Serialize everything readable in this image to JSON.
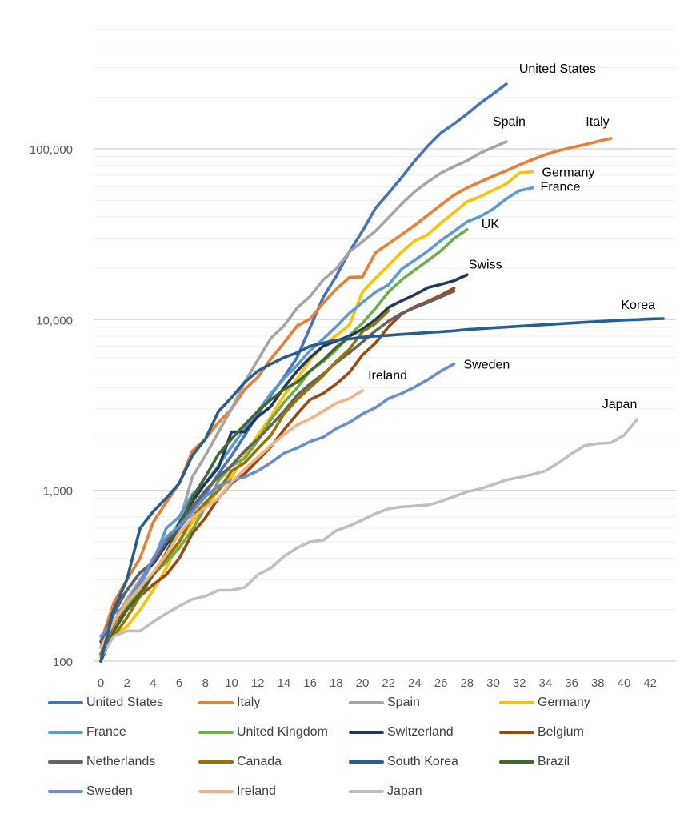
{
  "chart_data": {
    "type": "line",
    "xlabel": "",
    "ylabel": "",
    "title": "",
    "y_scale": "log",
    "ylim": [
      100,
      500000
    ],
    "xlim": [
      0,
      43
    ],
    "x_ticks": [
      0,
      2,
      4,
      6,
      8,
      10,
      12,
      14,
      16,
      18,
      20,
      22,
      24,
      26,
      28,
      30,
      32,
      34,
      36,
      38,
      40,
      42
    ],
    "y_ticks": [
      {
        "value": 100,
        "label": "100"
      },
      {
        "value": 1000,
        "label": "1,000"
      },
      {
        "value": 10000,
        "label": "10,000"
      },
      {
        "value": 100000,
        "label": "100,000"
      }
    ],
    "grid": "horizontal",
    "legend_position": "bottom",
    "series": [
      {
        "name": "United States",
        "label": "United States",
        "color": "#4472C4",
        "x": [
          0,
          1,
          2,
          3,
          4,
          5,
          6,
          7,
          8,
          9,
          10,
          11,
          12,
          13,
          14,
          15,
          16,
          17,
          18,
          19,
          20,
          21,
          22,
          23,
          24,
          25,
          26,
          27,
          28,
          29,
          30,
          31
        ],
        "y": [
          100,
          150,
          220,
          300,
          380,
          480,
          600,
          750,
          950,
          1250,
          1600,
          2100,
          2800,
          3600,
          4600,
          6000,
          9000,
          13500,
          18000,
          25000,
          33000,
          45000,
          55000,
          68000,
          85000,
          104000,
          124000,
          140000,
          160000,
          185000,
          210000,
          240000
        ]
      },
      {
        "name": "Italy",
        "label": "Italy",
        "color": "#ED7D31",
        "x": [
          0,
          1,
          2,
          3,
          4,
          5,
          6,
          7,
          8,
          9,
          10,
          11,
          12,
          13,
          14,
          15,
          16,
          17,
          18,
          19,
          20,
          21,
          22,
          23,
          24,
          25,
          26,
          27,
          28,
          29,
          30,
          31,
          32,
          33,
          34,
          35,
          36,
          37,
          38,
          39
        ],
        "y": [
          130,
          220,
          300,
          400,
          650,
          850,
          1100,
          1700,
          2000,
          2500,
          3000,
          3900,
          4600,
          5900,
          7300,
          9200,
          10100,
          12500,
          15100,
          17700,
          17800,
          24700,
          27900,
          31500,
          35700,
          41000,
          47000,
          53600,
          59100,
          64000,
          69200,
          74400,
          80500,
          86500,
          92500,
          97700,
          101700,
          105800,
          110600,
          115200
        ]
      },
      {
        "name": "Spain",
        "label": "Spain",
        "color": "#A5A5A5",
        "x": [
          0,
          1,
          2,
          3,
          4,
          5,
          6,
          7,
          8,
          9,
          10,
          11,
          12,
          13,
          14,
          15,
          16,
          17,
          18,
          19,
          20,
          21,
          22,
          23,
          24,
          25,
          26,
          27,
          28,
          29,
          30,
          31
        ],
        "y": [
          120,
          170,
          230,
          300,
          380,
          500,
          650,
          1200,
          1600,
          2200,
          3000,
          4300,
          5800,
          7800,
          9200,
          11700,
          13700,
          17100,
          19900,
          24900,
          28700,
          33000,
          39600,
          47600,
          56200,
          64000,
          72200,
          78800,
          85200,
          94400,
          102100,
          110200
        ]
      },
      {
        "name": "Germany",
        "label": "Germany",
        "color": "#FFC000",
        "x": [
          0,
          1,
          2,
          3,
          4,
          5,
          6,
          7,
          8,
          9,
          10,
          11,
          12,
          13,
          14,
          15,
          16,
          17,
          18,
          19,
          20,
          21,
          22,
          23,
          24,
          25,
          26,
          27,
          28,
          29,
          30,
          31,
          32,
          33
        ],
        "y": [
          110,
          140,
          160,
          200,
          260,
          350,
          500,
          650,
          800,
          1000,
          1200,
          1600,
          2100,
          2700,
          3600,
          4500,
          5800,
          7000,
          8100,
          9300,
          14500,
          17500,
          20800,
          24900,
          29000,
          31500,
          36900,
          42500,
          49000,
          52500,
          57300,
          62400,
          72300,
          73500
        ]
      },
      {
        "name": "France",
        "label": "France",
        "color": "#5B9BD5",
        "x": [
          0,
          1,
          2,
          3,
          4,
          5,
          6,
          7,
          8,
          9,
          10,
          11,
          12,
          13,
          14,
          15,
          16,
          17,
          18,
          19,
          20,
          21,
          22,
          23,
          24,
          25,
          26,
          27,
          28,
          29,
          30,
          31,
          32,
          33
        ],
        "y": [
          130,
          190,
          210,
          280,
          380,
          600,
          700,
          950,
          1100,
          1400,
          1800,
          2300,
          2900,
          3700,
          4500,
          5400,
          6600,
          7700,
          9100,
          10900,
          12600,
          14500,
          16000,
          19800,
          22300,
          25200,
          29100,
          32900,
          37500,
          40200,
          44500,
          51000,
          56900,
          59100
        ]
      },
      {
        "name": "United Kingdom",
        "label": "United Kingdom",
        "color": "#70AD47",
        "x": [
          0,
          1,
          2,
          3,
          4,
          5,
          6,
          7,
          8,
          9,
          10,
          11,
          12,
          13,
          14,
          15,
          16,
          17,
          18,
          19,
          20,
          21,
          22,
          23,
          24,
          25,
          26,
          27,
          28
        ],
        "y": [
          110,
          160,
          210,
          270,
          320,
          380,
          460,
          590,
          800,
          1140,
          1390,
          1540,
          1950,
          2600,
          3270,
          3980,
          5020,
          5680,
          6650,
          8080,
          9530,
          11660,
          14550,
          17100,
          19530,
          22190,
          25300,
          29900,
          33700
        ]
      },
      {
        "name": "Switzerland",
        "label": "Switzerland",
        "color": "#203864",
        "x": [
          0,
          1,
          2,
          3,
          4,
          5,
          6,
          7,
          8,
          9,
          10,
          11,
          12,
          13,
          14,
          15,
          16,
          17,
          18,
          19,
          20,
          21,
          22,
          23,
          24,
          25,
          26,
          27,
          28
        ],
        "y": [
          120,
          200,
          260,
          330,
          370,
          480,
          640,
          860,
          1100,
          1360,
          2200,
          2200,
          2700,
          3100,
          4000,
          5000,
          6000,
          7000,
          7500,
          8000,
          8800,
          10000,
          11800,
          12900,
          14000,
          15400,
          16100,
          16900,
          18300
        ]
      },
      {
        "name": "Belgium",
        "label": "Belgium",
        "color": "#9E480E",
        "x": [
          0,
          1,
          2,
          3,
          4,
          5,
          6,
          7,
          8,
          9,
          10,
          11,
          12,
          13,
          14,
          15,
          16,
          17,
          18,
          19,
          20,
          21,
          22,
          23,
          24,
          25,
          26,
          27
        ],
        "y": [
          110,
          170,
          200,
          240,
          280,
          320,
          400,
          560,
          690,
          900,
          1100,
          1250,
          1500,
          1800,
          2260,
          2800,
          3400,
          3700,
          4200,
          4900,
          6200,
          7300,
          9100,
          10800,
          11900,
          12800,
          13900,
          15300
        ]
      },
      {
        "name": "Netherlands",
        "label": "Netherlands",
        "color": "#636363",
        "x": [
          0,
          1,
          2,
          3,
          4,
          5,
          6,
          7,
          8,
          9,
          10,
          11,
          12,
          13,
          14,
          15,
          16,
          17,
          18,
          19,
          20,
          21,
          22,
          23,
          24,
          25,
          26,
          27
        ],
        "y": [
          130,
          190,
          260,
          330,
          380,
          500,
          620,
          800,
          1000,
          1200,
          1400,
          1700,
          2000,
          2400,
          2900,
          3600,
          4200,
          4800,
          5600,
          6400,
          7400,
          8600,
          9800,
          10900,
          11750,
          12600,
          13600,
          14700
        ]
      },
      {
        "name": "Canada",
        "label": "Canada",
        "color": "#997300",
        "x": [
          0,
          1,
          2,
          3,
          4,
          5,
          6,
          7,
          8,
          9,
          10,
          11,
          12,
          13,
          14,
          15,
          16,
          17,
          18,
          19,
          20,
          21,
          22
        ],
        "y": [
          110,
          140,
          180,
          240,
          320,
          400,
          500,
          700,
          850,
          1000,
          1300,
          1450,
          1750,
          2100,
          2800,
          3400,
          4000,
          4700,
          5700,
          6700,
          8500,
          9500,
          11300
        ]
      },
      {
        "name": "South Korea",
        "label": "Korea",
        "color": "#255E91",
        "x": [
          0,
          1,
          2,
          3,
          4,
          5,
          6,
          7,
          8,
          9,
          10,
          11,
          12,
          13,
          14,
          15,
          16,
          17,
          18,
          19,
          20,
          21,
          22,
          23,
          24,
          25,
          26,
          27,
          28,
          29,
          30,
          31,
          32,
          33,
          34,
          35,
          36,
          37,
          38,
          39,
          40,
          41,
          42,
          43
        ],
        "y": [
          100,
          200,
          300,
          600,
          750,
          900,
          1100,
          1600,
          2000,
          2900,
          3500,
          4300,
          5000,
          5500,
          6000,
          6400,
          7000,
          7300,
          7600,
          7700,
          7900,
          8000,
          8100,
          8200,
          8300,
          8400,
          8500,
          8600,
          8750,
          8850,
          8950,
          9050,
          9150,
          9250,
          9350,
          9450,
          9550,
          9650,
          9750,
          9850,
          9950,
          10000,
          10100,
          10150
        ]
      },
      {
        "name": "Brazil",
        "label": "Brazil",
        "color": "#43682B",
        "x": [
          0,
          1,
          2,
          3,
          4,
          5,
          6,
          7,
          8,
          9,
          10,
          11,
          12,
          13,
          14,
          15,
          16,
          17,
          18,
          19
        ],
        "y": [
          100,
          150,
          200,
          250,
          320,
          430,
          620,
          910,
          1200,
          1630,
          2000,
          2430,
          2900,
          3400,
          3900,
          4300,
          5000,
          5800,
          6900,
          7900
        ]
      },
      {
        "name": "Sweden",
        "label": "Sweden",
        "color": "#698ED0",
        "x": [
          0,
          1,
          2,
          3,
          4,
          5,
          6,
          7,
          8,
          9,
          10,
          11,
          12,
          13,
          14,
          15,
          16,
          17,
          18,
          19,
          20,
          21,
          22,
          23,
          24,
          25,
          26,
          27
        ],
        "y": [
          140,
          170,
          220,
          290,
          400,
          530,
          620,
          750,
          920,
          1060,
          1140,
          1200,
          1300,
          1450,
          1650,
          1770,
          1930,
          2050,
          2300,
          2500,
          2800,
          3050,
          3450,
          3700,
          4030,
          4450,
          5000,
          5500
        ]
      },
      {
        "name": "Ireland",
        "label": "Ireland",
        "color": "#F4B183",
        "x": [
          0,
          1,
          2,
          3,
          4,
          5,
          6,
          7,
          8,
          9,
          10,
          11,
          12,
          13,
          14,
          15,
          16,
          17,
          18,
          19,
          20
        ],
        "y": [
          120,
          170,
          220,
          270,
          330,
          420,
          560,
          690,
          790,
          900,
          1120,
          1330,
          1560,
          1830,
          2120,
          2420,
          2620,
          2910,
          3240,
          3450,
          3850
        ]
      },
      {
        "name": "Japan",
        "label": "Japan",
        "color": "#BFBFBF",
        "x": [
          0,
          1,
          2,
          3,
          4,
          5,
          6,
          7,
          8,
          9,
          10,
          11,
          12,
          13,
          14,
          15,
          16,
          17,
          18,
          19,
          20,
          21,
          22,
          23,
          24,
          25,
          26,
          27,
          28,
          29,
          30,
          31,
          32,
          33,
          34,
          35,
          36,
          37,
          38,
          39,
          40,
          41
        ],
        "y": [
          105,
          140,
          150,
          150,
          170,
          190,
          210,
          230,
          240,
          260,
          260,
          270,
          320,
          350,
          410,
          460,
          500,
          510,
          580,
          620,
          670,
          730,
          780,
          800,
          810,
          820,
          860,
          920,
          980,
          1020,
          1080,
          1150,
          1190,
          1240,
          1300,
          1450,
          1640,
          1830,
          1880,
          1900,
          2100,
          2600
        ]
      }
    ]
  }
}
